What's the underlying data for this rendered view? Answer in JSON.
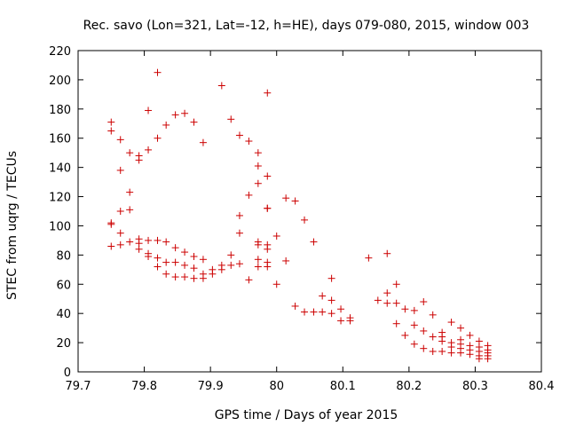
{
  "chart_data": {
    "type": "scatter",
    "title": "Rec. savo (Lon=321, Lat=-12, h=HE), days 079-080, 2015, window 003",
    "xlabel": "GPS time / Days of year 2015",
    "ylabel": "STEC from uqrg / TECUs",
    "xlim": [
      79.7,
      80.4
    ],
    "ylim": [
      0,
      220
    ],
    "x_ticks": [
      "79.7",
      "79.8",
      "79.9",
      "80",
      "80.1",
      "80.2",
      "80.3",
      "80.4"
    ],
    "y_ticks": [
      "0",
      "20",
      "40",
      "60",
      "80",
      "100",
      "120",
      "140",
      "160",
      "180",
      "200",
      "220"
    ],
    "grid": false,
    "legend": "none",
    "marker": "plus",
    "color": "#cc0000",
    "series": [
      {
        "points": [
          [
            79.75,
            171
          ],
          [
            79.75,
            165
          ],
          [
            79.75,
            101
          ],
          [
            79.75,
            102
          ],
          [
            79.75,
            86
          ],
          [
            79.764,
            159
          ],
          [
            79.764,
            138
          ],
          [
            79.764,
            110
          ],
          [
            79.764,
            95
          ],
          [
            79.764,
            87
          ],
          [
            79.778,
            150
          ],
          [
            79.778,
            123
          ],
          [
            79.778,
            111
          ],
          [
            79.778,
            89
          ],
          [
            79.792,
            148
          ],
          [
            79.792,
            145
          ],
          [
            79.792,
            91
          ],
          [
            79.792,
            88
          ],
          [
            79.792,
            84
          ],
          [
            79.806,
            179
          ],
          [
            79.806,
            152
          ],
          [
            79.806,
            90
          ],
          [
            79.806,
            81
          ],
          [
            79.806,
            79
          ],
          [
            79.82,
            205
          ],
          [
            79.82,
            160
          ],
          [
            79.82,
            90
          ],
          [
            79.82,
            78
          ],
          [
            79.82,
            72
          ],
          [
            79.833,
            169
          ],
          [
            79.833,
            89
          ],
          [
            79.833,
            75
          ],
          [
            79.833,
            67
          ],
          [
            79.847,
            176
          ],
          [
            79.847,
            85
          ],
          [
            79.847,
            75
          ],
          [
            79.847,
            65
          ],
          [
            79.861,
            177
          ],
          [
            79.861,
            82
          ],
          [
            79.861,
            73
          ],
          [
            79.861,
            65
          ],
          [
            79.875,
            171
          ],
          [
            79.875,
            79
          ],
          [
            79.875,
            71
          ],
          [
            79.875,
            64
          ],
          [
            79.889,
            157
          ],
          [
            79.889,
            77
          ],
          [
            79.889,
            67
          ],
          [
            79.889,
            64
          ],
          [
            79.903,
            70
          ],
          [
            79.903,
            67
          ],
          [
            79.917,
            196
          ],
          [
            79.917,
            73
          ],
          [
            79.917,
            70
          ],
          [
            79.931,
            173
          ],
          [
            79.931,
            80
          ],
          [
            79.931,
            73
          ],
          [
            79.944,
            162
          ],
          [
            79.944,
            107
          ],
          [
            79.944,
            95
          ],
          [
            79.944,
            74
          ],
          [
            79.958,
            158
          ],
          [
            79.958,
            121
          ],
          [
            79.958,
            63
          ],
          [
            79.972,
            150
          ],
          [
            79.972,
            141
          ],
          [
            79.972,
            129
          ],
          [
            79.972,
            89
          ],
          [
            79.972,
            87
          ],
          [
            79.972,
            77
          ],
          [
            79.972,
            72
          ],
          [
            79.986,
            191
          ],
          [
            79.986,
            134
          ],
          [
            79.986,
            112
          ],
          [
            79.986,
            112
          ],
          [
            79.986,
            87
          ],
          [
            79.986,
            84
          ],
          [
            79.986,
            75
          ],
          [
            79.986,
            72
          ],
          [
            80.0,
            93
          ],
          [
            80.0,
            60
          ],
          [
            80.014,
            119
          ],
          [
            80.014,
            76
          ],
          [
            80.028,
            117
          ],
          [
            80.028,
            45
          ],
          [
            80.042,
            104
          ],
          [
            80.042,
            41
          ],
          [
            80.056,
            89
          ],
          [
            80.056,
            41
          ],
          [
            80.069,
            52
          ],
          [
            80.069,
            41
          ],
          [
            80.083,
            64
          ],
          [
            80.083,
            49
          ],
          [
            80.083,
            40
          ],
          [
            80.097,
            43
          ],
          [
            80.097,
            35
          ],
          [
            80.111,
            37
          ],
          [
            80.111,
            35
          ],
          [
            80.139,
            78
          ],
          [
            80.153,
            49
          ],
          [
            80.167,
            81
          ],
          [
            80.167,
            54
          ],
          [
            80.167,
            47
          ],
          [
            80.181,
            60
          ],
          [
            80.181,
            47
          ],
          [
            80.181,
            33
          ],
          [
            80.194,
            43
          ],
          [
            80.194,
            25
          ],
          [
            80.208,
            42
          ],
          [
            80.208,
            32
          ],
          [
            80.208,
            19
          ],
          [
            80.222,
            48
          ],
          [
            80.222,
            28
          ],
          [
            80.222,
            16
          ],
          [
            80.236,
            39
          ],
          [
            80.236,
            24
          ],
          [
            80.236,
            14
          ],
          [
            80.25,
            27
          ],
          [
            80.25,
            24
          ],
          [
            80.25,
            21
          ],
          [
            80.25,
            14
          ],
          [
            80.264,
            34
          ],
          [
            80.264,
            20
          ],
          [
            80.264,
            17
          ],
          [
            80.264,
            13
          ],
          [
            80.278,
            30
          ],
          [
            80.278,
            22
          ],
          [
            80.278,
            19
          ],
          [
            80.278,
            16
          ],
          [
            80.278,
            13
          ],
          [
            80.292,
            25
          ],
          [
            80.292,
            18
          ],
          [
            80.292,
            15
          ],
          [
            80.292,
            12
          ],
          [
            80.306,
            21
          ],
          [
            80.306,
            17
          ],
          [
            80.306,
            14
          ],
          [
            80.306,
            11
          ],
          [
            80.306,
            9
          ],
          [
            80.319,
            18
          ],
          [
            80.319,
            15
          ],
          [
            80.319,
            13
          ],
          [
            80.319,
            11
          ],
          [
            80.319,
            9
          ]
        ]
      }
    ]
  }
}
